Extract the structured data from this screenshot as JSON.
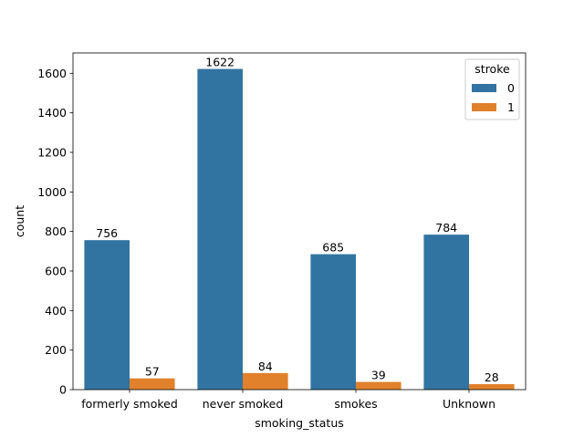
{
  "chart_data": {
    "type": "bar",
    "categories": [
      "formerly smoked",
      "never smoked",
      "smokes",
      "Unknown"
    ],
    "series": [
      {
        "name": "0",
        "values": [
          756,
          1622,
          685,
          784
        ],
        "color": "#3274a1"
      },
      {
        "name": "1",
        "values": [
          57,
          84,
          39,
          28
        ],
        "color": "#e1812c"
      }
    ],
    "xlabel": "smoking_status",
    "ylabel": "count",
    "ylim": [
      0,
      1703
    ],
    "yticks": [
      0,
      200,
      400,
      600,
      800,
      1000,
      1200,
      1400,
      1600
    ],
    "grid": false,
    "legend": {
      "title": "stroke",
      "placement": "top-right"
    }
  }
}
